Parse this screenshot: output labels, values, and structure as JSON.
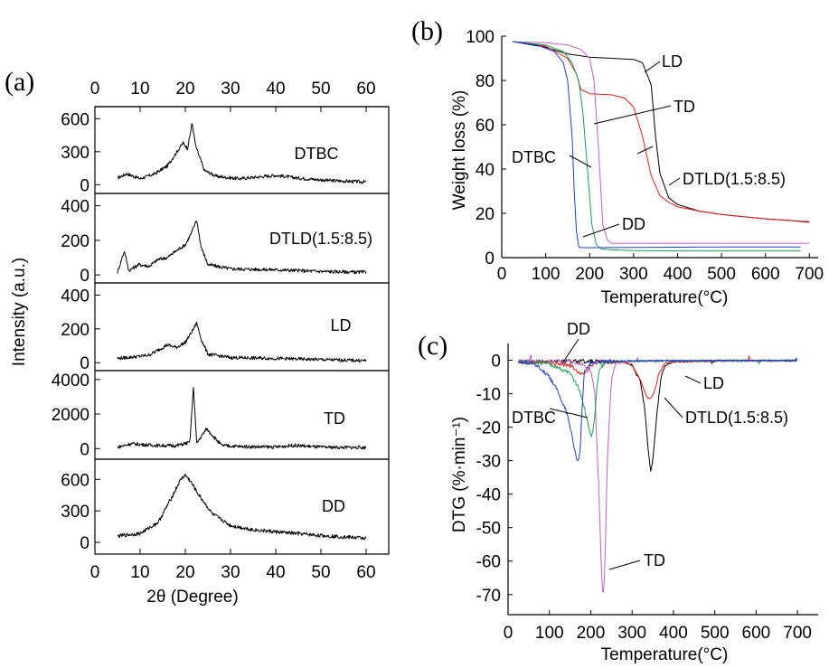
{
  "panel_labels": {
    "a": "(a)",
    "b": "(b)",
    "c": "(c)"
  },
  "colors": {
    "LD": "#000000",
    "DTLD": "#e0201b",
    "TD": "#c05fc0",
    "DD": "#1aa050",
    "DTBC": "#2040d0"
  },
  "chart_data": [
    {
      "id": "a",
      "type": "line",
      "title": "",
      "xlabel": "2θ (Degree)",
      "ylabel": "Intensity (a.u.)",
      "xlim": [
        0,
        65
      ],
      "x_ticks": [
        0,
        10,
        20,
        30,
        40,
        50,
        60
      ],
      "stacked_panels": [
        {
          "name": "DTBC",
          "ylim": [
            -30,
            660
          ],
          "yticks": [
            0,
            300,
            600
          ],
          "peaks": [
            [
              5,
              60
            ],
            [
              7,
              100
            ],
            [
              10,
              55
            ],
            [
              13,
              95
            ],
            [
              16,
              170
            ],
            [
              18,
              290
            ],
            [
              19.5,
              380
            ],
            [
              20.5,
              330
            ],
            [
              21.5,
              560
            ],
            [
              22.3,
              350
            ],
            [
              24.2,
              130
            ],
            [
              27,
              75
            ],
            [
              32,
              55
            ],
            [
              40,
              85
            ],
            [
              45,
              60
            ],
            [
              52,
              38
            ],
            [
              60,
              25
            ]
          ]
        },
        {
          "name": "DTLD(1.5:8.5)",
          "ylim": [
            -15,
            440
          ],
          "yticks": [
            0,
            200,
            400
          ],
          "peaks": [
            [
              5,
              15
            ],
            [
              6.5,
              140
            ],
            [
              7.5,
              25
            ],
            [
              9.7,
              60
            ],
            [
              12,
              50
            ],
            [
              14,
              90
            ],
            [
              16,
              100
            ],
            [
              18,
              140
            ],
            [
              20,
              175
            ],
            [
              21.5,
              250
            ],
            [
              22.5,
              320
            ],
            [
              23.5,
              160
            ],
            [
              25,
              60
            ],
            [
              30,
              35
            ],
            [
              40,
              30
            ],
            [
              50,
              20
            ],
            [
              60,
              15
            ]
          ]
        },
        {
          "name": "LD",
          "ylim": [
            -15,
            440
          ],
          "yticks": [
            0,
            200,
            400
          ],
          "peaks": [
            [
              5,
              25
            ],
            [
              9,
              35
            ],
            [
              12,
              45
            ],
            [
              14,
              75
            ],
            [
              16,
              105
            ],
            [
              18,
              90
            ],
            [
              20,
              120
            ],
            [
              21.5,
              185
            ],
            [
              22.5,
              235
            ],
            [
              23.5,
              140
            ],
            [
              25,
              50
            ],
            [
              30,
              30
            ],
            [
              40,
              25
            ],
            [
              50,
              18
            ],
            [
              60,
              12
            ]
          ]
        },
        {
          "name": "TD",
          "ylim": [
            -300,
            4200
          ],
          "yticks": [
            0,
            2000,
            4000
          ],
          "peaks": [
            [
              5,
              80
            ],
            [
              8,
              280
            ],
            [
              13.5,
              180
            ],
            [
              18,
              170
            ],
            [
              21,
              360
            ],
            [
              21.8,
              3600
            ],
            [
              22.5,
              300
            ],
            [
              24.7,
              1150
            ],
            [
              28,
              180
            ],
            [
              32,
              120
            ],
            [
              40,
              90
            ],
            [
              44,
              190
            ],
            [
              50,
              80
            ],
            [
              60,
              60
            ]
          ]
        },
        {
          "name": "DD",
          "ylim": [
            -60,
            740
          ],
          "yticks": [
            0,
            300,
            600
          ],
          "peaks": [
            [
              5,
              60
            ],
            [
              10,
              85
            ],
            [
              14,
              190
            ],
            [
              17,
              430
            ],
            [
              19,
              600
            ],
            [
              20,
              640
            ],
            [
              21,
              590
            ],
            [
              23,
              450
            ],
            [
              26,
              270
            ],
            [
              30,
              160
            ],
            [
              35,
              120
            ],
            [
              40,
              100
            ],
            [
              50,
              65
            ],
            [
              60,
              40
            ]
          ]
        }
      ]
    },
    {
      "id": "b",
      "type": "line",
      "title": "",
      "xlabel": "Temperature(°C)",
      "ylabel": "Weight loss (%)",
      "xlim": [
        0,
        720
      ],
      "ylim": [
        0,
        100
      ],
      "x_ticks": [
        0,
        100,
        200,
        300,
        400,
        500,
        600,
        700
      ],
      "y_ticks": [
        0,
        20,
        40,
        60,
        80,
        100
      ],
      "series": [
        {
          "name": "LD",
          "x": [
            25,
            100,
            150,
            200,
            250,
            300,
            320,
            340,
            350,
            360,
            380,
            400,
            450,
            500,
            550,
            600,
            650,
            700
          ],
          "y": [
            97.5,
            95,
            92,
            90.5,
            90,
            89.5,
            88,
            78,
            55,
            38,
            27,
            24,
            21,
            19.5,
            18.5,
            17.5,
            16.8,
            16
          ]
        },
        {
          "name": "DTLD(1.5:8.5)",
          "x": [
            25,
            100,
            150,
            170,
            180,
            200,
            250,
            280,
            300,
            320,
            340,
            360,
            380,
            400,
            450,
            500,
            550,
            600,
            650,
            700
          ],
          "y": [
            97.5,
            95.5,
            90,
            83,
            76,
            74,
            73.5,
            72,
            68,
            55,
            37,
            28,
            25,
            23,
            21,
            19.5,
            18.5,
            17.5,
            16.8,
            16.3
          ]
        },
        {
          "name": "TD",
          "x": [
            25,
            100,
            150,
            180,
            200,
            210,
            220,
            230,
            240,
            250,
            300,
            400,
            500,
            600,
            700
          ],
          "y": [
            97.5,
            97,
            96,
            94,
            90,
            80,
            50,
            15,
            8,
            6.5,
            6.5,
            6.5,
            6.5,
            6.5,
            6.5
          ]
        },
        {
          "name": "DD",
          "x": [
            25,
            100,
            140,
            160,
            175,
            185,
            195,
            205,
            215,
            225,
            250,
            300,
            400,
            500,
            600,
            680
          ],
          "y": [
            97.5,
            96,
            93,
            88,
            80,
            65,
            40,
            15,
            6,
            4,
            3.5,
            3.2,
            3,
            3,
            3,
            3
          ]
        },
        {
          "name": "DTBC",
          "x": [
            25,
            80,
            120,
            140,
            150,
            160,
            165,
            170,
            175,
            180,
            200,
            300,
            400,
            500,
            600,
            680
          ],
          "y": [
            97.5,
            96,
            93,
            88,
            80,
            55,
            30,
            12,
            5,
            4.5,
            4.5,
            4.6,
            4.7,
            4.8,
            4.8,
            4.8
          ]
        }
      ],
      "annotations": [
        "LD",
        "TD",
        "DTBC",
        "DTLD(1.5:8.5)",
        "DD"
      ]
    },
    {
      "id": "c",
      "type": "line",
      "title": "",
      "xlabel": "Temperature(°C)",
      "ylabel": "DTG (%·min⁻¹)",
      "xlim": [
        0,
        750
      ],
      "ylim": [
        -76,
        5
      ],
      "x_ticks": [
        0,
        100,
        200,
        300,
        400,
        500,
        600,
        700
      ],
      "y_ticks": [
        0,
        -10,
        -20,
        -30,
        -40,
        -50,
        -60,
        -70
      ],
      "series": [
        {
          "name": "LD",
          "x": [
            25,
            100,
            200,
            280,
            300,
            320,
            330,
            340,
            345,
            350,
            360,
            370,
            380,
            400,
            500,
            700
          ],
          "y": [
            -0.5,
            -0.3,
            -0.3,
            -0.5,
            -1.5,
            -6,
            -14,
            -28,
            -33,
            -30,
            -16,
            -5,
            -1.5,
            -0.5,
            -0.2,
            -0.1
          ]
        },
        {
          "name": "DTLD(1.5:8.5)",
          "x": [
            25,
            100,
            150,
            170,
            180,
            190,
            200,
            220,
            280,
            300,
            320,
            335,
            345,
            355,
            365,
            380,
            400,
            500,
            700
          ],
          "y": [
            -0.5,
            -0.8,
            -1.5,
            -3.5,
            -4,
            -3,
            -1.5,
            -0.5,
            -0.5,
            -1.5,
            -6,
            -11,
            -11.5,
            -9,
            -4,
            -1,
            -0.4,
            -0.2,
            -0.1
          ]
        },
        {
          "name": "TD",
          "x": [
            25,
            150,
            180,
            200,
            210,
            220,
            225,
            230,
            235,
            240,
            250,
            260,
            300,
            500,
            700
          ],
          "y": [
            -0.3,
            -0.4,
            -1,
            -3,
            -10,
            -40,
            -60,
            -72,
            -58,
            -30,
            -6,
            -1,
            -0.3,
            -0.1,
            -0.1
          ]
        },
        {
          "name": "DD",
          "x": [
            25,
            100,
            150,
            170,
            180,
            190,
            195,
            200,
            205,
            210,
            215,
            220,
            230,
            250,
            300,
            500,
            700
          ],
          "y": [
            -0.5,
            -1,
            -4,
            -8,
            -12,
            -17,
            -20,
            -23,
            -21,
            -16,
            -8,
            -3,
            -1,
            -0.4,
            -0.2,
            -0.1,
            -0.1
          ]
        },
        {
          "name": "DTBC",
          "x": [
            25,
            60,
            80,
            100,
            120,
            140,
            150,
            160,
            165,
            170,
            175,
            180,
            185,
            200,
            250,
            400,
            700
          ],
          "y": [
            -0.5,
            -1,
            -2.5,
            -5,
            -9,
            -15,
            -20,
            -26,
            -29,
            -30,
            -26,
            -12,
            -3,
            -0.8,
            -0.3,
            -0.1,
            -0.1
          ]
        }
      ],
      "annotations": [
        "DD",
        "LD",
        "DTBC",
        "DTLD(1.5:8.5)",
        "TD"
      ]
    }
  ]
}
